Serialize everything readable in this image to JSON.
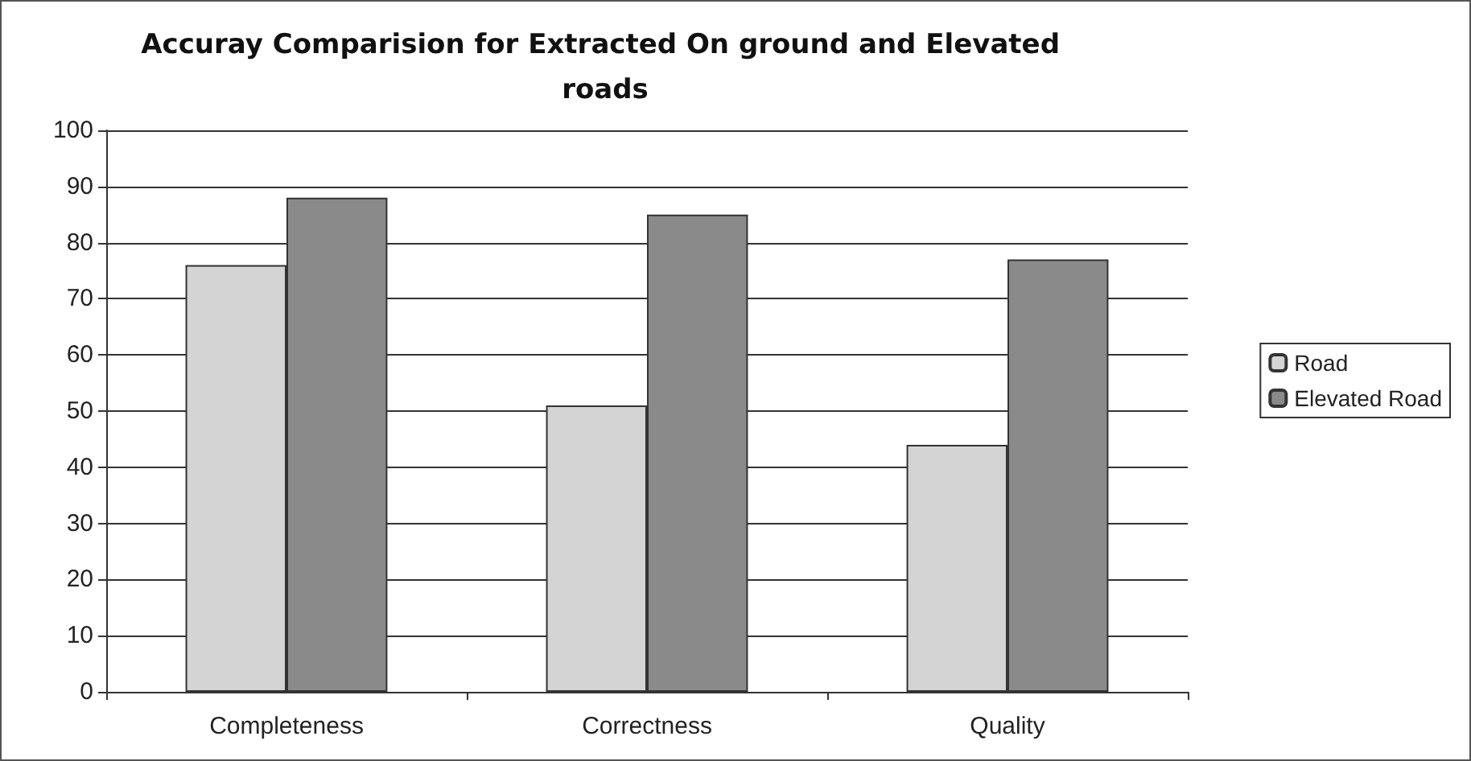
{
  "chart_data": {
    "type": "bar",
    "title": "Accuray Comparision for Extracted On ground and Elevated roads",
    "categories": [
      "Completeness",
      "Correctness",
      "Quality"
    ],
    "series": [
      {
        "name": "Road",
        "color": "#d4d4d4",
        "values": [
          76,
          51,
          44
        ]
      },
      {
        "name": "Elevated Road",
        "color": "#8a8a8a",
        "values": [
          88,
          85,
          77
        ]
      }
    ],
    "ylim": [
      0,
      100
    ],
    "yticks": [
      0,
      10,
      20,
      30,
      40,
      50,
      60,
      70,
      80,
      90,
      100
    ],
    "grid": "y",
    "legend": "right"
  }
}
